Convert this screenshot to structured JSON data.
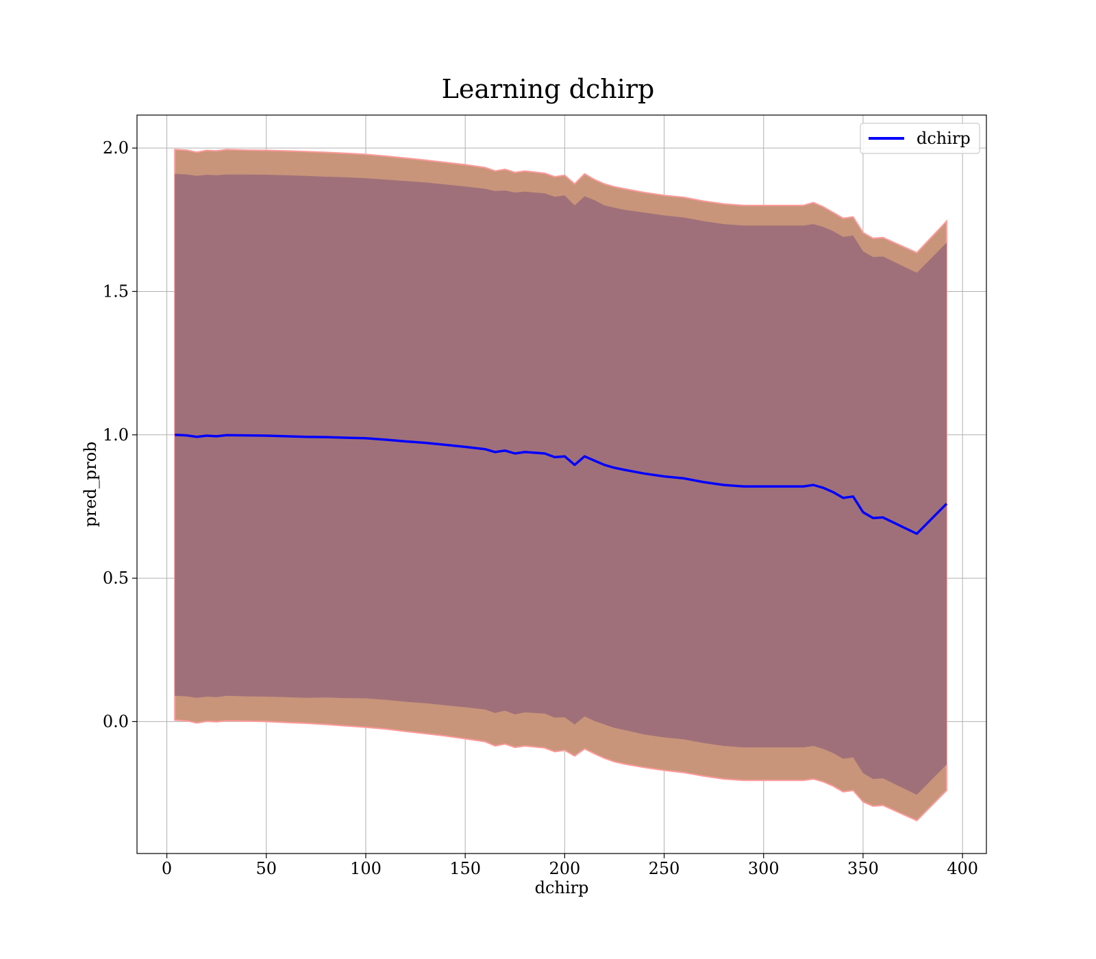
{
  "chart_data": {
    "type": "area",
    "title": "Learning dchirp",
    "xlabel": "dchirp",
    "ylabel": "pred_prob",
    "xlim": [
      -15,
      412
    ],
    "ylim": [
      -0.46,
      2.115
    ],
    "xticks": [
      0,
      50,
      100,
      150,
      200,
      250,
      300,
      350,
      400
    ],
    "yticks": [
      0.0,
      0.5,
      1.0,
      1.5,
      2.0
    ],
    "xtick_labels": [
      "0",
      "50",
      "100",
      "150",
      "200",
      "250",
      "300",
      "350",
      "400"
    ],
    "ytick_labels": [
      "0.0",
      "0.5",
      "1.0",
      "1.5",
      "2.0"
    ],
    "grid": true,
    "legend": {
      "position": "top-right",
      "entries": [
        "dchirp"
      ]
    },
    "colors": {
      "line": "#0000ff",
      "outer_band": "#c8957a",
      "outer_band_edge": "#ff9a9a",
      "inner_band": "#a0707a",
      "grid": "#b0b0b0"
    },
    "x": [
      4,
      10,
      15,
      20,
      25,
      30,
      40,
      50,
      60,
      70,
      80,
      90,
      100,
      110,
      120,
      130,
      140,
      150,
      160,
      165,
      170,
      175,
      180,
      190,
      195,
      200,
      205,
      210,
      215,
      220,
      225,
      230,
      240,
      250,
      260,
      270,
      280,
      290,
      300,
      310,
      320,
      325,
      330,
      335,
      340,
      345,
      350,
      355,
      360,
      377,
      392
    ],
    "series": [
      {
        "name": "dchirp",
        "role": "mean",
        "values": [
          1.0,
          0.998,
          0.993,
          0.997,
          0.995,
          0.999,
          0.998,
          0.997,
          0.995,
          0.993,
          0.992,
          0.99,
          0.988,
          0.983,
          0.977,
          0.972,
          0.965,
          0.958,
          0.95,
          0.94,
          0.945,
          0.935,
          0.94,
          0.935,
          0.922,
          0.925,
          0.895,
          0.925,
          0.91,
          0.895,
          0.885,
          0.878,
          0.865,
          0.855,
          0.848,
          0.835,
          0.825,
          0.82,
          0.82,
          0.82,
          0.82,
          0.825,
          0.815,
          0.8,
          0.78,
          0.785,
          0.73,
          0.71,
          0.712,
          0.655,
          0.76
        ]
      },
      {
        "name": "",
        "role": "inner_band_upper",
        "values": [
          1.91,
          1.908,
          1.903,
          1.907,
          1.905,
          1.908,
          1.908,
          1.907,
          1.905,
          1.903,
          1.9,
          1.898,
          1.895,
          1.89,
          1.885,
          1.88,
          1.873,
          1.866,
          1.858,
          1.85,
          1.852,
          1.845,
          1.848,
          1.842,
          1.83,
          1.835,
          1.8,
          1.832,
          1.818,
          1.8,
          1.792,
          1.785,
          1.775,
          1.765,
          1.758,
          1.745,
          1.735,
          1.73,
          1.73,
          1.73,
          1.73,
          1.735,
          1.725,
          1.71,
          1.69,
          1.695,
          1.64,
          1.62,
          1.622,
          1.565,
          1.67
        ]
      },
      {
        "name": "",
        "role": "inner_band_lower",
        "values": [
          0.09,
          0.088,
          0.083,
          0.087,
          0.085,
          0.09,
          0.088,
          0.087,
          0.085,
          0.083,
          0.084,
          0.082,
          0.081,
          0.076,
          0.069,
          0.064,
          0.057,
          0.05,
          0.042,
          0.03,
          0.038,
          0.025,
          0.032,
          0.028,
          0.014,
          0.015,
          -0.01,
          0.018,
          0.002,
          -0.01,
          -0.022,
          -0.029,
          -0.045,
          -0.055,
          -0.062,
          -0.075,
          -0.085,
          -0.09,
          -0.09,
          -0.09,
          -0.09,
          -0.085,
          -0.095,
          -0.11,
          -0.13,
          -0.125,
          -0.18,
          -0.2,
          -0.198,
          -0.255,
          -0.15
        ]
      },
      {
        "name": "",
        "role": "outer_band_upper",
        "values": [
          1.995,
          1.993,
          1.985,
          1.992,
          1.99,
          1.995,
          1.993,
          1.992,
          1.99,
          1.988,
          1.985,
          1.982,
          1.978,
          1.972,
          1.965,
          1.958,
          1.95,
          1.942,
          1.932,
          1.92,
          1.926,
          1.915,
          1.92,
          1.912,
          1.9,
          1.905,
          1.875,
          1.91,
          1.89,
          1.875,
          1.865,
          1.858,
          1.845,
          1.835,
          1.828,
          1.815,
          1.805,
          1.8,
          1.8,
          1.8,
          1.8,
          1.81,
          1.795,
          1.775,
          1.755,
          1.76,
          1.705,
          1.685,
          1.688,
          1.635,
          1.745
        ]
      },
      {
        "name": "",
        "role": "outer_band_lower",
        "values": [
          0.005,
          0.003,
          -0.005,
          0.001,
          -0.001,
          0.003,
          0.002,
          0.0,
          -0.003,
          -0.006,
          -0.01,
          -0.015,
          -0.02,
          -0.026,
          -0.034,
          -0.042,
          -0.05,
          -0.06,
          -0.07,
          -0.085,
          -0.078,
          -0.09,
          -0.085,
          -0.092,
          -0.105,
          -0.1,
          -0.12,
          -0.095,
          -0.112,
          -0.128,
          -0.14,
          -0.148,
          -0.16,
          -0.17,
          -0.178,
          -0.19,
          -0.2,
          -0.205,
          -0.205,
          -0.205,
          -0.205,
          -0.2,
          -0.21,
          -0.225,
          -0.245,
          -0.24,
          -0.28,
          -0.295,
          -0.292,
          -0.345,
          -0.24
        ]
      }
    ]
  }
}
